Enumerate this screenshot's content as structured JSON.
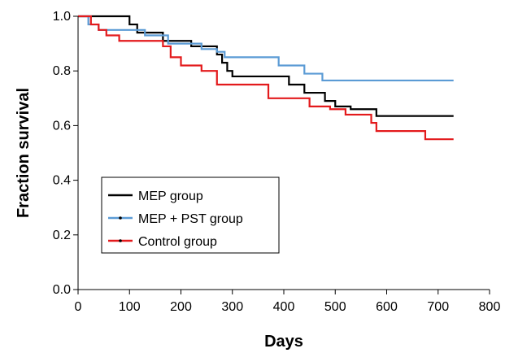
{
  "chart_data": {
    "type": "line",
    "step": true,
    "xlabel": "Days",
    "ylabel": "Fraction survival",
    "xlim": [
      0,
      800
    ],
    "ylim": [
      0.0,
      1.0
    ],
    "xticks": [
      "0",
      "100",
      "200",
      "300",
      "400",
      "500",
      "600",
      "700",
      "800"
    ],
    "yticks": [
      "0.0",
      "0.2",
      "0.4",
      "0.6",
      "0.8",
      "1.0"
    ],
    "grid": false,
    "legend_position": "bottom-left",
    "series": [
      {
        "name": "MEP group",
        "color": "#000000",
        "x": [
          0,
          90,
          100,
          115,
          160,
          165,
          180,
          220,
          270,
          280,
          290,
          300,
          400,
          410,
          440,
          480,
          500,
          530,
          570,
          580,
          730
        ],
        "y": [
          1.0,
          1.0,
          0.97,
          0.94,
          0.94,
          0.91,
          0.91,
          0.89,
          0.86,
          0.83,
          0.8,
          0.78,
          0.78,
          0.75,
          0.72,
          0.69,
          0.67,
          0.66,
          0.66,
          0.635,
          0.635
        ]
      },
      {
        "name": "MEP + PST group",
        "color": "#5b9bd5",
        "x": [
          0,
          20,
          40,
          110,
          130,
          175,
          240,
          270,
          285,
          340,
          390,
          410,
          440,
          475,
          490,
          730
        ],
        "y": [
          1.0,
          0.97,
          0.95,
          0.95,
          0.93,
          0.9,
          0.88,
          0.87,
          0.85,
          0.85,
          0.82,
          0.82,
          0.79,
          0.765,
          0.765,
          0.765
        ]
      },
      {
        "name": "Control group",
        "color": "#e31a1c",
        "x": [
          0,
          25,
          40,
          55,
          80,
          150,
          165,
          180,
          200,
          240,
          270,
          360,
          370,
          450,
          490,
          520,
          570,
          580,
          630,
          675,
          730
        ],
        "y": [
          1.0,
          0.97,
          0.95,
          0.93,
          0.91,
          0.91,
          0.89,
          0.85,
          0.82,
          0.8,
          0.75,
          0.75,
          0.7,
          0.67,
          0.66,
          0.64,
          0.61,
          0.58,
          0.58,
          0.55,
          0.55
        ]
      }
    ]
  }
}
